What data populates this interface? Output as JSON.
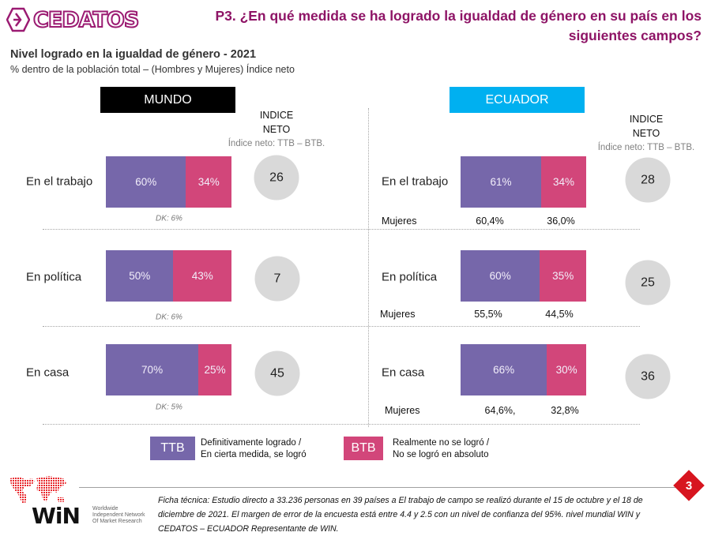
{
  "header": {
    "logo_text": "CEDATOS",
    "question_line1": "P3. ¿En qué medida se ha logrado la igualdad de género en su país en los",
    "question_line2": "siguientes campos?"
  },
  "subheader": {
    "title": "Nivel logrado en la igualdad de género - 2021",
    "description": "% dentro de la población total – (Hombres y Mujeres) Índice neto"
  },
  "chart_data": {
    "type": "bar",
    "orientation": "horizontal-stacked",
    "title": "Nivel logrado en la igualdad de género - 2021",
    "categories": [
      "En el trabajo",
      "En política",
      "En casa"
    ],
    "series_names": [
      "TTB",
      "BTB"
    ],
    "colors": {
      "ttb": "#7667aa",
      "btb": "#d2467a",
      "mundo_header": "#000000",
      "ecuador_header": "#00b0f0",
      "index_circle": "#d9d9d9"
    },
    "panels": [
      {
        "name": "MUNDO",
        "index_title_line1": "INDICE",
        "index_title_line2": "NETO",
        "index_note": "Índice neto: TTB – BTB.",
        "rows": [
          {
            "category": "En el trabajo",
            "ttb": 60,
            "btb": 34,
            "net_index": 26,
            "dk": "DK: 6%"
          },
          {
            "category": "En política",
            "ttb": 50,
            "btb": 43,
            "net_index": 7,
            "dk": "DK: 6%"
          },
          {
            "category": "En casa",
            "ttb": 70,
            "btb": 25,
            "net_index": 45,
            "dk": "DK: 5%"
          }
        ]
      },
      {
        "name": "ECUADOR",
        "index_title_line1": "INDICE",
        "index_title_line2": "NETO",
        "index_note": "Índice neto: TTB – BTB.",
        "rows": [
          {
            "category": "En el trabajo",
            "ttb": 61,
            "btb": 34,
            "net_index": 28,
            "mujeres_label": "Mujeres",
            "mujeres_ttb": "60,4%",
            "mujeres_btb": "36,0%"
          },
          {
            "category": "En política",
            "ttb": 60,
            "btb": 35,
            "net_index": 25,
            "mujeres_label": "Mujeres",
            "mujeres_ttb": "55,5%",
            "mujeres_btb": "44,5%"
          },
          {
            "category": "En casa",
            "ttb": 66,
            "btb": 30,
            "net_index": 36,
            "mujeres_label": "Mujeres",
            "mujeres_ttb": "64,6%,",
            "mujeres_btb": "32,8%"
          }
        ]
      }
    ]
  },
  "legend": [
    {
      "key": "TTB",
      "line1": "Definitivamente logrado /",
      "line2": "En cierta medida, se logró"
    },
    {
      "key": "BTB",
      "line1": "Realmente no se logró /",
      "line2": "No se logró en absoluto"
    }
  ],
  "footer": {
    "win_logo": "WiN",
    "win_subtitle": "Worldwide\nIndependent Network\nOf Market Research",
    "ficha_line1": "Ficha técnica: Estudio directo a 33.236 personas en 39 países a El trabajo de campo se realizó durante el 15 de octubre y el 18 de",
    "ficha_line2": "diciembre de 2021. El margen de error de la encuesta está entre 4.4 y 2.5 con un nivel de confianza del 95%. nivel mundial WIN y",
    "ficha_line3": "CEDATOS – ECUADOR Representante de WIN.",
    "page_number": "3"
  }
}
